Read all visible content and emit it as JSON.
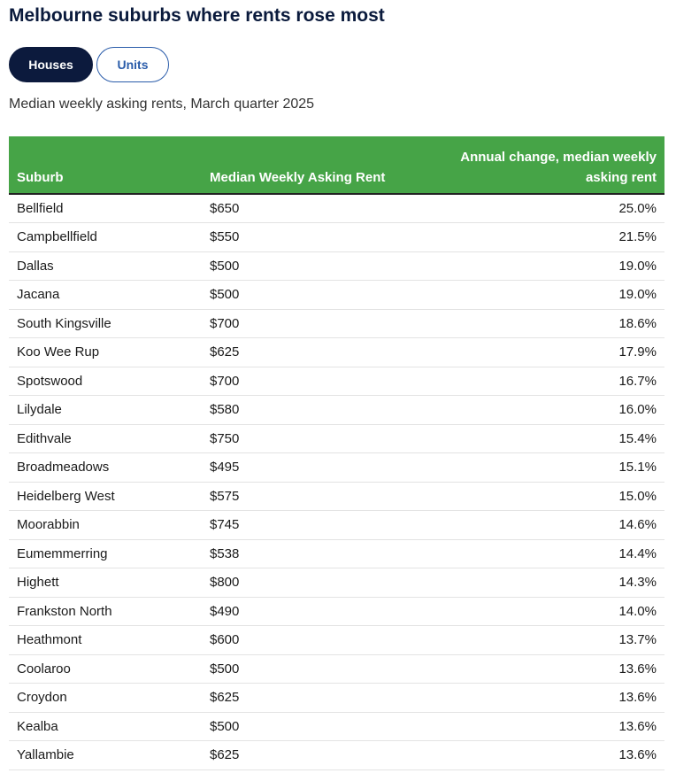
{
  "title": "Melbourne suburbs where rents rose most",
  "toggle": {
    "houses_label": "Houses",
    "units_label": "Units",
    "selected": "Houses"
  },
  "subtitle": "Median weekly asking rents, March quarter 2025",
  "colors": {
    "header_bg": "#46a447",
    "active_button": "#0c1a3d",
    "inactive_button_text": "#2a5caa",
    "title": "#0a1a3c"
  },
  "chart_data": {
    "type": "table",
    "columns": [
      "Suburb",
      "Median Weekly Asking Rent",
      "Annual change, median weekly asking rent"
    ],
    "rows": [
      [
        "Bellfield",
        "$650",
        "25.0%"
      ],
      [
        "Campbellfield",
        "$550",
        "21.5%"
      ],
      [
        "Dallas",
        "$500",
        "19.0%"
      ],
      [
        "Jacana",
        "$500",
        "19.0%"
      ],
      [
        "South Kingsville",
        "$700",
        "18.6%"
      ],
      [
        "Koo Wee Rup",
        "$625",
        "17.9%"
      ],
      [
        "Spotswood",
        "$700",
        "16.7%"
      ],
      [
        "Lilydale",
        "$580",
        "16.0%"
      ],
      [
        "Edithvale",
        "$750",
        "15.4%"
      ],
      [
        "Broadmeadows",
        "$495",
        "15.1%"
      ],
      [
        "Heidelberg West",
        "$575",
        "15.0%"
      ],
      [
        "Moorabbin",
        "$745",
        "14.6%"
      ],
      [
        "Eumemmerring",
        "$538",
        "14.4%"
      ],
      [
        "Highett",
        "$800",
        "14.3%"
      ],
      [
        "Frankston North",
        "$490",
        "14.0%"
      ],
      [
        "Heathmont",
        "$600",
        "13.7%"
      ],
      [
        "Coolaroo",
        "$500",
        "13.6%"
      ],
      [
        "Croydon",
        "$625",
        "13.6%"
      ],
      [
        "Kealba",
        "$500",
        "13.6%"
      ],
      [
        "Yallambie",
        "$625",
        "13.6%"
      ]
    ]
  }
}
